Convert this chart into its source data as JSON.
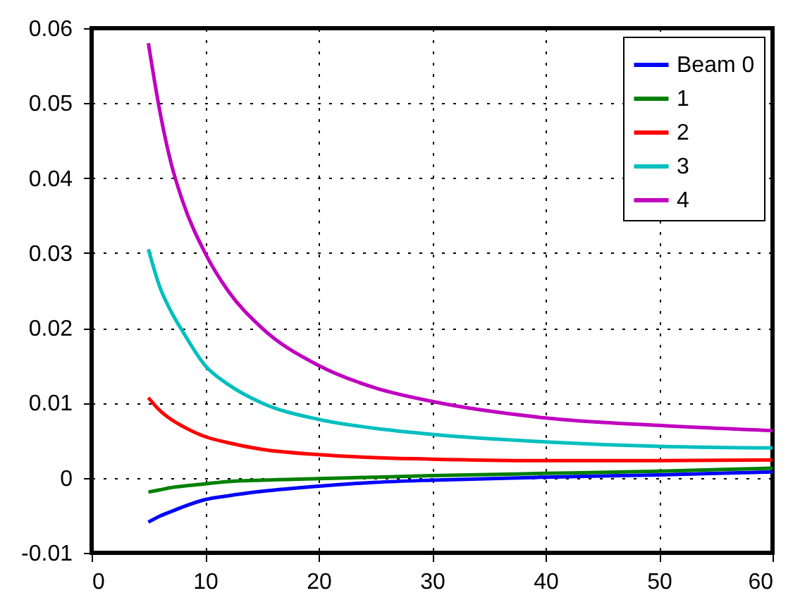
{
  "chart_data": {
    "type": "line",
    "x": [
      5,
      6,
      7,
      8,
      10,
      12,
      15,
      20,
      25,
      30,
      40,
      50,
      60
    ],
    "series": [
      {
        "name": "Beam 0",
        "color": "#0000ff",
        "values": [
          -0.0059,
          -0.0051,
          -0.0045,
          -0.0039,
          -0.0029,
          -0.0024,
          -0.0018,
          -0.0011,
          -0.0006,
          -0.0003,
          0.0001,
          0.0004,
          0.0008
        ]
      },
      {
        "name": "1",
        "color": "#008000",
        "values": [
          -0.0019,
          -0.0016,
          -0.0013,
          -0.0011,
          -0.0008,
          -0.0005,
          -0.0003,
          -0.0001,
          0.0001,
          0.0003,
          0.0006,
          0.0009,
          0.0013
        ]
      },
      {
        "name": "2",
        "color": "#ff0000",
        "values": [
          0.0107,
          0.009,
          0.0078,
          0.0069,
          0.0055,
          0.0047,
          0.0038,
          0.0031,
          0.0027,
          0.0025,
          0.0023,
          0.0023,
          0.0024
        ]
      },
      {
        "name": "3",
        "color": "#00bfbf",
        "values": [
          0.0305,
          0.0255,
          0.0222,
          0.0196,
          0.015,
          0.0125,
          0.01,
          0.0078,
          0.0066,
          0.0058,
          0.0048,
          0.0042,
          0.004
        ]
      },
      {
        "name": "4",
        "color": "#bf00bf",
        "values": [
          0.058,
          0.049,
          0.042,
          0.037,
          0.03,
          0.025,
          0.02,
          0.015,
          0.012,
          0.0102,
          0.008,
          0.007,
          0.0063
        ]
      }
    ],
    "xlim": [
      0,
      60
    ],
    "xticks": [
      0,
      10,
      20,
      30,
      40,
      50,
      60
    ],
    "ylim": [
      -0.01,
      0.06
    ],
    "yticks": [
      -0.01,
      {
        "value": 0,
        "label": "0"
      },
      0.01,
      0.02,
      0.03,
      0.04,
      0.05,
      0.06
    ],
    "grid": true,
    "legend": "top right",
    "line_style": "solid",
    "marker": "none"
  }
}
